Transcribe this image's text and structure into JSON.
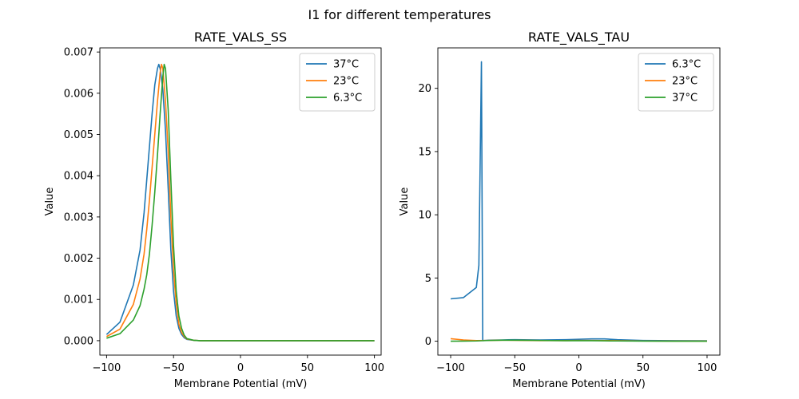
{
  "figure": {
    "title": "I1 for different temperatures"
  },
  "chart_data": [
    {
      "type": "line",
      "title": "RATE_VALS_SS",
      "xlabel": "Membrane Potential (mV)",
      "ylabel": "Value",
      "xlim": [
        -105,
        105
      ],
      "ylim": [
        -0.00035,
        0.0071
      ],
      "xticks": [
        -100,
        -50,
        0,
        50,
        100
      ],
      "xtick_labels": [
        "−100",
        "−50",
        "0",
        "50",
        "100"
      ],
      "yticks": [
        0.0,
        0.001,
        0.002,
        0.003,
        0.004,
        0.005,
        0.006,
        0.007
      ],
      "ytick_labels": [
        "0.000",
        "0.001",
        "0.002",
        "0.003",
        "0.004",
        "0.005",
        "0.006",
        "0.007"
      ],
      "legend_position": "top-right",
      "series": [
        {
          "name": "37°C",
          "color": "#1f77b4",
          "x": [
            -100,
            -90,
            -80,
            -75,
            -72,
            -70,
            -68,
            -66,
            -64,
            -62,
            -61,
            -60,
            -58,
            -56,
            -54,
            -52,
            -50,
            -48,
            -46,
            -44,
            -42,
            -40,
            -35,
            -30,
            0,
            50,
            100
          ],
          "y": [
            0.00015,
            0.00045,
            0.00135,
            0.0022,
            0.0031,
            0.0039,
            0.0047,
            0.0055,
            0.0062,
            0.0066,
            0.0067,
            0.0066,
            0.0061,
            0.0051,
            0.0037,
            0.0022,
            0.0012,
            0.0006,
            0.0003,
            0.00015,
            7e-05,
            3e-05,
            1e-05,
            0.0,
            0.0,
            0.0,
            0.0
          ]
        },
        {
          "name": "23°C",
          "color": "#ff7f0e",
          "x": [
            -100,
            -90,
            -80,
            -75,
            -72,
            -70,
            -68,
            -66,
            -64,
            -62,
            -60,
            -59,
            -58,
            -56,
            -54,
            -52,
            -50,
            -48,
            -46,
            -44,
            -42,
            -40,
            -35,
            -30,
            0,
            50,
            100
          ],
          "y": [
            0.0001,
            0.00028,
            0.00088,
            0.0015,
            0.0021,
            0.0027,
            0.0034,
            0.0042,
            0.005,
            0.0058,
            0.0065,
            0.0067,
            0.0066,
            0.0058,
            0.0046,
            0.003,
            0.0017,
            0.0009,
            0.0004,
            0.0002,
            0.0001,
            4e-05,
            1e-05,
            0.0,
            0.0,
            0.0,
            0.0
          ]
        },
        {
          "name": "6.3°C",
          "color": "#2ca02c",
          "x": [
            -100,
            -90,
            -80,
            -75,
            -72,
            -70,
            -68,
            -66,
            -64,
            -62,
            -60,
            -58,
            -57,
            -56,
            -54,
            -52,
            -50,
            -48,
            -46,
            -44,
            -42,
            -40,
            -35,
            -30,
            0,
            50,
            100
          ],
          "y": [
            6e-05,
            0.00017,
            0.0005,
            0.00085,
            0.00125,
            0.0016,
            0.0021,
            0.0028,
            0.0036,
            0.0045,
            0.0055,
            0.0064,
            0.0067,
            0.0066,
            0.0056,
            0.0039,
            0.0023,
            0.0012,
            0.0006,
            0.0003,
            0.00013,
            5e-05,
            1e-05,
            0.0,
            0.0,
            0.0,
            0.0
          ]
        }
      ]
    },
    {
      "type": "line",
      "title": "RATE_VALS_TAU",
      "xlabel": "Membrane Potential (mV)",
      "ylabel": "Value",
      "xlim": [
        -110,
        110
      ],
      "ylim": [
        -1.1,
        23.2
      ],
      "xticks": [
        -100,
        -50,
        0,
        50,
        100
      ],
      "xtick_labels": [
        "−100",
        "−50",
        "0",
        "50",
        "100"
      ],
      "yticks": [
        0,
        5,
        10,
        15,
        20
      ],
      "ytick_labels": [
        "0",
        "5",
        "10",
        "15",
        "20"
      ],
      "legend_position": "top-right",
      "series": [
        {
          "name": "6.3°C",
          "color": "#1f77b4",
          "x": [
            -100,
            -90,
            -80,
            -78,
            -76,
            -75,
            -70,
            -60,
            -50,
            -30,
            -10,
            0,
            10,
            20,
            30,
            50,
            75,
            100
          ],
          "y": [
            3.35,
            3.45,
            4.25,
            6.0,
            22.1,
            0.05,
            0.08,
            0.1,
            0.12,
            0.1,
            0.12,
            0.15,
            0.18,
            0.18,
            0.12,
            0.06,
            0.04,
            0.03
          ]
        },
        {
          "name": "23°C",
          "color": "#ff7f0e",
          "x": [
            -100,
            -90,
            -80,
            -70,
            -60,
            -50,
            -30,
            -10,
            0,
            10,
            20,
            30,
            50,
            75,
            100
          ],
          "y": [
            0.2,
            0.1,
            0.05,
            0.06,
            0.08,
            0.07,
            0.05,
            0.05,
            0.06,
            0.06,
            0.05,
            0.04,
            0.02,
            0.01,
            0.01
          ]
        },
        {
          "name": "37°C",
          "color": "#2ca02c",
          "x": [
            -100,
            -90,
            -80,
            -70,
            -60,
            -50,
            -30,
            -10,
            0,
            10,
            20,
            30,
            50,
            75,
            100
          ],
          "y": [
            0.0,
            0.01,
            0.02,
            0.06,
            0.08,
            0.08,
            0.06,
            0.04,
            0.04,
            0.04,
            0.03,
            0.02,
            0.01,
            0.0,
            0.0
          ]
        }
      ]
    }
  ]
}
